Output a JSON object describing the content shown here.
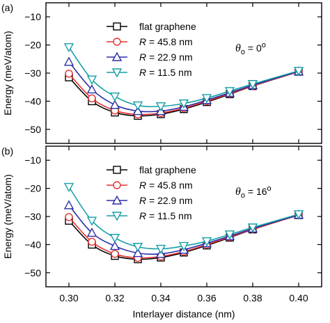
{
  "chart_data": [
    {
      "type": "line",
      "panel_label": "(a)",
      "annotation": {
        "theta": "θ",
        "sub": "o",
        "eq": " = 0",
        "sup": "o"
      },
      "ylabel": "Energy (meV/atom)",
      "xlabel": "",
      "ylim": [
        -55,
        -5
      ],
      "yticks": [
        -10,
        -20,
        -30,
        -40,
        -50
      ],
      "xlim": [
        0.29,
        0.41
      ],
      "legend_position": "top-center",
      "x": [
        0.3,
        0.31,
        0.32,
        0.33,
        0.34,
        0.35,
        0.36,
        0.37,
        0.38,
        0.4
      ],
      "series": [
        {
          "name_prefix": "",
          "name_value": "flat graphene",
          "color": "#000000",
          "marker": "square",
          "values": [
            -31.5,
            -40.0,
            -44.0,
            -45.2,
            -44.6,
            -42.8,
            -40.3,
            -37.5,
            -34.6,
            -29.5
          ]
        },
        {
          "name_prefix": "R",
          "name_value": " = 45.8 nm",
          "color": "#e8312e",
          "marker": "circle",
          "values": [
            -30.2,
            -39.0,
            -43.3,
            -44.7,
            -44.2,
            -42.5,
            -40.0,
            -37.3,
            -34.5,
            -29.5
          ]
        },
        {
          "name_prefix": "R",
          "name_value": " = 22.9 nm",
          "color": "#2b2fa8",
          "marker": "triangle-up",
          "values": [
            -26.0,
            -35.8,
            -41.3,
            -43.5,
            -43.5,
            -42.0,
            -39.6,
            -37.0,
            -34.3,
            -29.4
          ]
        },
        {
          "name_prefix": "R",
          "name_value": " = 11.5 nm",
          "color": "#169ea5",
          "marker": "triangle-down",
          "values": [
            -20.8,
            -32.3,
            -38.3,
            -41.5,
            -41.8,
            -40.8,
            -38.9,
            -36.4,
            -33.9,
            -29.2
          ]
        }
      ]
    },
    {
      "type": "line",
      "panel_label": "(b)",
      "annotation": {
        "theta": "θ",
        "sub": "o",
        "eq": " = 16",
        "sup": "o"
      },
      "ylabel": "Energy (meV/atom)",
      "xlabel": "Interlayer distance (nm)",
      "ylim": [
        -55,
        -5
      ],
      "yticks": [
        -10,
        -20,
        -30,
        -40,
        -50
      ],
      "xlim": [
        0.29,
        0.41
      ],
      "xticks": [
        "0.30",
        "0.32",
        "0.34",
        "0.36",
        "0.38",
        "0.40"
      ],
      "legend_position": "top-center",
      "x": [
        0.3,
        0.31,
        0.32,
        0.33,
        0.34,
        0.35,
        0.36,
        0.37,
        0.38,
        0.4
      ],
      "series": [
        {
          "name_prefix": "",
          "name_value": "flat graphene",
          "color": "#000000",
          "marker": "square",
          "values": [
            -31.5,
            -40.0,
            -44.0,
            -45.2,
            -44.6,
            -42.8,
            -40.3,
            -37.5,
            -34.6,
            -29.5
          ]
        },
        {
          "name_prefix": "R",
          "name_value": " = 45.8 nm",
          "color": "#e8312e",
          "marker": "circle",
          "values": [
            -30.2,
            -39.0,
            -43.3,
            -44.7,
            -44.2,
            -42.5,
            -40.0,
            -37.3,
            -34.5,
            -29.5
          ]
        },
        {
          "name_prefix": "R",
          "name_value": " = 22.9 nm",
          "color": "#2b2fa8",
          "marker": "triangle-up",
          "values": [
            -26.0,
            -35.8,
            -40.5,
            -43.0,
            -43.3,
            -41.8,
            -39.5,
            -37.0,
            -34.3,
            -29.4
          ]
        },
        {
          "name_prefix": "R",
          "name_value": " = 11.5 nm",
          "color": "#169ea5",
          "marker": "triangle-down",
          "values": [
            -19.5,
            -31.5,
            -37.6,
            -40.8,
            -41.5,
            -40.5,
            -38.8,
            -36.4,
            -33.9,
            -29.2
          ]
        }
      ]
    }
  ]
}
